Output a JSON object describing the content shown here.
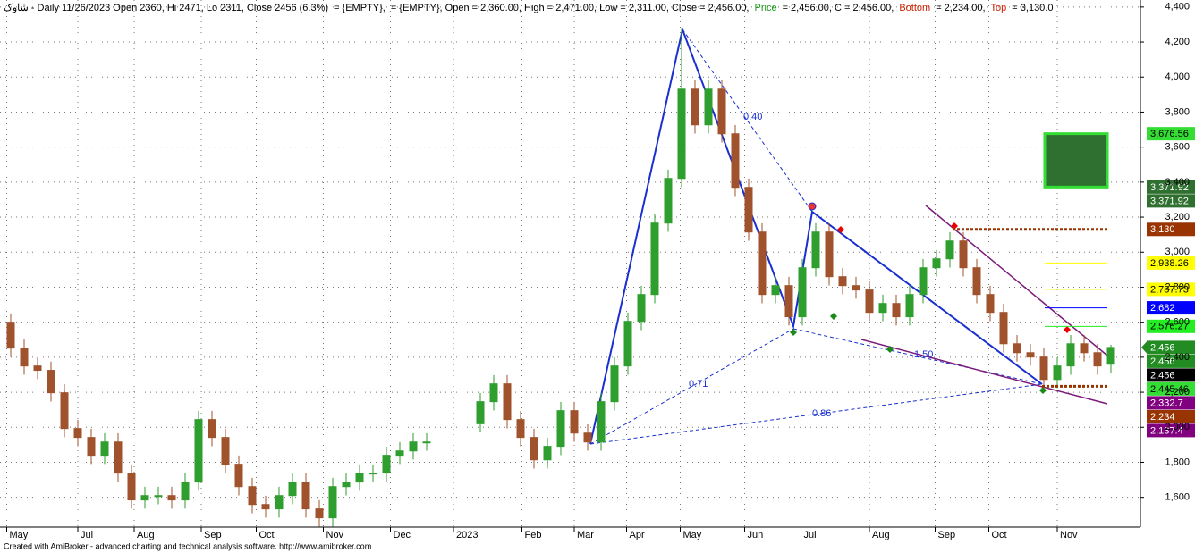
{
  "chart_data": {
    "type": "candlestick",
    "header": [
      {
        "text": "شاوک - Daily 11/26/2023 Open 2360, Hi 2471, Lo 2311, Close 2456 (6.3%)",
        "color": "#000000"
      },
      {
        "text": "= {EMPTY},",
        "color": "#000000"
      },
      {
        "text": "= {EMPTY}, Open = 2,360.00, High = 2,471.00, Low = 2,311.00, Close = 2,456.00,",
        "color": "#000000"
      },
      {
        "text": "Price",
        "color": "#1a9c1a"
      },
      {
        "text": "= 2,456.00, C = 2,456.00,",
        "color": "#000000"
      },
      {
        "text": "Bottom",
        "color": "#cc2200"
      },
      {
        "text": "= 2,234.00,",
        "color": "#000000"
      },
      {
        "text": "Top",
        "color": "#cc2200"
      },
      {
        "text": "= 3,130.0",
        "color": "#000000"
      }
    ],
    "footer": "Created with AmiBroker - advanced charting and technical analysis software. http://www.amibroker.com",
    "up_color": "#2e9e2e",
    "down_color": "#a0522d",
    "open": [
      2600,
      2452,
      2350,
      2325,
      2197,
      1993,
      1942,
      1840,
      1916,
      1738,
      1585,
      1610,
      1610,
      1585,
      1687,
      2044,
      1942,
      1789,
      1661,
      1559,
      1534,
      1610,
      1687,
      1534,
      1483,
      1661,
      1687,
      1738,
      1738,
      1840,
      1865,
      1916,
      null,
      null,
      null,
      2020,
      2146,
      2248,
      2044,
      1942,
      1814,
      1891,
      2095,
      1967,
      1916,
      2146,
      2350,
      2605,
      2758,
      3166,
      3421,
      3931,
      3727,
      3931,
      3676,
      3370,
      3115,
      2758,
      2809,
      2631,
      2911,
      3115,
      2860,
      2809,
      2784,
      2656,
      2707,
      2631,
      2758,
      2911,
      2962,
      3064,
      2911,
      2758,
      2656,
      2477,
      2426,
      2401,
      2273,
      2350,
      2477,
      2426,
      2360
    ],
    "high": [
      2650,
      2502,
      2400,
      2375,
      2247,
      2043,
      1992,
      1966,
      1966,
      1788,
      1660,
      1660,
      1660,
      1737,
      2094,
      2094,
      1992,
      1839,
      1711,
      1609,
      1660,
      1737,
      1737,
      1584,
      1711,
      1737,
      1788,
      1788,
      1890,
      1915,
      1966,
      1966,
      null,
      null,
      null,
      2196,
      2298,
      2298,
      2094,
      1992,
      1941,
      2145,
      2145,
      2017,
      2196,
      2400,
      2655,
      2808,
      3216,
      3471,
      4280,
      3981,
      3981,
      3981,
      3726,
      3420,
      3165,
      2859,
      2859,
      2961,
      3165,
      3165,
      2910,
      2859,
      2834,
      2757,
      2757,
      2808,
      2961,
      3012,
      3114,
      3114,
      2961,
      2808,
      2706,
      2527,
      2476,
      2451,
      2400,
      2527,
      2527,
      2476,
      2471
    ],
    "low": [
      2402,
      2300,
      2275,
      2147,
      1943,
      1892,
      1790,
      1790,
      1688,
      1535,
      1535,
      1560,
      1535,
      1535,
      1637,
      1892,
      1739,
      1611,
      1509,
      1484,
      1484,
      1560,
      1484,
      1433,
      1433,
      1611,
      1637,
      1688,
      1688,
      1790,
      1815,
      1866,
      null,
      null,
      null,
      1970,
      2096,
      1994,
      1892,
      1764,
      1764,
      1841,
      1917,
      1866,
      1866,
      2096,
      2300,
      2555,
      2708,
      3116,
      3371,
      3677,
      3677,
      3626,
      3320,
      3065,
      2708,
      2708,
      2581,
      2581,
      2861,
      2810,
      2759,
      2734,
      2606,
      2606,
      2581,
      2581,
      2708,
      2861,
      2912,
      2861,
      2708,
      2606,
      2427,
      2376,
      2351,
      2223,
      2223,
      2300,
      2376,
      2300,
      2311
    ],
    "close": [
      2452,
      2350,
      2325,
      2197,
      1993,
      1942,
      1840,
      1916,
      1738,
      1585,
      1610,
      1610,
      1585,
      1687,
      2044,
      1942,
      1789,
      1661,
      1559,
      1534,
      1610,
      1687,
      1534,
      1483,
      1661,
      1687,
      1738,
      1738,
      1840,
      1865,
      1916,
      1916,
      null,
      null,
      null,
      2146,
      2248,
      2044,
      1942,
      1814,
      1891,
      2095,
      1967,
      1916,
      2146,
      2350,
      2605,
      2758,
      3166,
      3421,
      3931,
      3727,
      3931,
      3676,
      3370,
      3115,
      2758,
      2809,
      2631,
      2911,
      3115,
      2860,
      2809,
      2784,
      2656,
      2707,
      2631,
      2758,
      2911,
      2962,
      3064,
      2911,
      2758,
      2656,
      2477,
      2426,
      2401,
      2273,
      2350,
      2477,
      2426,
      2350,
      2456
    ],
    "xlim": [
      -0.8,
      84.2
    ],
    "xticks": [
      {
        "value": -0.3,
        "label": "May"
      },
      {
        "value": 5,
        "label": "Jul"
      },
      {
        "value": 9.2,
        "label": "Aug"
      },
      {
        "value": 14.2,
        "label": "Sep"
      },
      {
        "value": 18.3,
        "label": "Oct"
      },
      {
        "value": 23.3,
        "label": "Nov"
      },
      {
        "value": 28.3,
        "label": "Dec"
      },
      {
        "value": 33,
        "label": "2023"
      },
      {
        "value": 38.1,
        "label": "Feb"
      },
      {
        "value": 42,
        "label": "Mar"
      },
      {
        "value": 45.9,
        "label": "Apr"
      },
      {
        "value": 49.9,
        "label": "May"
      },
      {
        "value": 54.7,
        "label": "Jun"
      },
      {
        "value": 58.9,
        "label": "Jul"
      },
      {
        "value": 64,
        "label": "Aug"
      },
      {
        "value": 68.9,
        "label": "Sep"
      },
      {
        "value": 72.9,
        "label": "Oct"
      },
      {
        "value": 78,
        "label": "Nov"
      }
    ],
    "ylim": [
      1430,
      4440
    ],
    "yticks": [
      {
        "value": 1600,
        "label": "1,600"
      },
      {
        "value": 1800,
        "label": "1,800"
      },
      {
        "value": 2000,
        "label": "2,000"
      },
      {
        "value": 2200,
        "label": "2,200"
      },
      {
        "value": 2400,
        "label": "2,400"
      },
      {
        "value": 2600,
        "label": "2,600"
      },
      {
        "value": 2800,
        "label": "2,800"
      },
      {
        "value": 3000,
        "label": "3,000"
      },
      {
        "value": 3200,
        "label": "3,200"
      },
      {
        "value": 3400,
        "label": "3,400"
      },
      {
        "value": 3600,
        "label": "3,600"
      },
      {
        "value": 3800,
        "label": "3,800"
      },
      {
        "value": 4000,
        "label": "4,000"
      },
      {
        "value": 4200,
        "label": "4,200"
      },
      {
        "value": 4400,
        "label": "4,400"
      }
    ],
    "grid": true,
    "levels": {
      "values": [
        3676.56,
        3371.92,
        3371.92,
        3130,
        2938.26,
        2787.73,
        2682,
        2576.27,
        2456,
        2456,
        2456,
        2445.46,
        2332.7,
        2234,
        2137.4
      ],
      "value_labels": [
        "3,676.56",
        "3,371.92",
        "3,371.92",
        "3,130",
        "2,938.26",
        "2,787.73",
        "2,682",
        "2,576.27",
        "2,456",
        "2,456",
        "2,456",
        "2,445.46",
        "2,332.7",
        "2,234",
        "2,137.4"
      ],
      "colors": [
        "#33dd33",
        "#2f6f2f",
        "#2f6f2f",
        "#993300",
        "#ffff00",
        "#ffff00",
        "#0000ff",
        "#22ee22",
        "#228b22",
        "#228b22",
        "#000000",
        "#33dd33",
        "#800080",
        "#993300",
        "#800080"
      ],
      "text_colors": [
        "#000000",
        "#ffffff",
        "#ffffff",
        "#ffffff",
        "#000000",
        "#000000",
        "#ffffff",
        "#000000",
        "#ffffff",
        "#ffffff",
        "#ffffff",
        "#000000",
        "#ffffff",
        "#ffffff",
        "#ffffff"
      ]
    },
    "ratios": [
      "0.40",
      "0.71",
      "0.86",
      "1.50"
    ]
  }
}
